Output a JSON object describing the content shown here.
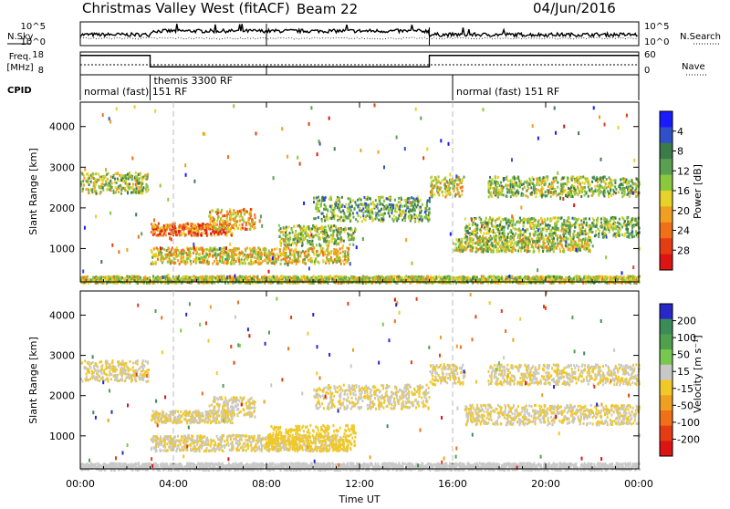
{
  "header": {
    "title": "Christmas Valley West (fitACF)",
    "beam": "Beam 22",
    "date": "04/Jun/2016"
  },
  "strips": {
    "nsky_label": "N.Sky",
    "nsky_ticks": [
      "10^5",
      "10^0"
    ],
    "nsearch_label": "N.Search",
    "freq_label": "Freq.",
    "freq_unit": "[MHz]",
    "freq_ticks": [
      "18",
      "8"
    ],
    "nave_label": "Nave",
    "nave_ticks": [
      "60",
      "0"
    ],
    "cpid_label": "CPID",
    "cpid_segments": [
      {
        "label": "normal (fast) 151 RF",
        "start_h": 0,
        "end_h": 3
      },
      {
        "label": "themis 3300 RF",
        "start_h": 3,
        "end_h": 15
      },
      {
        "label": "normal (fast) 151 RF",
        "start_h": 16,
        "end_h": 24
      }
    ]
  },
  "axes": {
    "ylabel": "Slant Range [km]",
    "xlabel": "Time UT",
    "x_ticks": [
      "00:00",
      "04:00",
      "08:00",
      "12:00",
      "16:00",
      "20:00",
      "00:00"
    ],
    "y_ticks": [
      "1000",
      "2000",
      "3000",
      "4000"
    ]
  },
  "colorbars": {
    "power": {
      "label": "Power [dB]",
      "ticks": [
        "4",
        "8",
        "12",
        "16",
        "20",
        "24",
        "28"
      ],
      "colors": [
        "#1a1aff",
        "#3050c8",
        "#3c7a4a",
        "#5aa050",
        "#8cc83c",
        "#e6d228",
        "#f0a020",
        "#f07018",
        "#e63c14",
        "#dc1414"
      ]
    },
    "velocity": {
      "label": "Velocity [m s⁻¹]",
      "ticks": [
        "200",
        "100",
        "50",
        "15",
        "-15",
        "-50",
        "-100",
        "-200"
      ],
      "colors": [
        "#2828c8",
        "#3c8c5a",
        "#50a050",
        "#78c850",
        "#c8c8c8",
        "#f0c828",
        "#f0a020",
        "#f07018",
        "#e63c14",
        "#dc1414"
      ]
    }
  },
  "chart_data": [
    {
      "type": "line",
      "title": "N.Sky",
      "x_range_h": [
        0,
        24
      ],
      "yscale": "log",
      "note_level": "approx 10^2 to 10^3 throughout"
    },
    {
      "type": "line",
      "title": "Freq.",
      "x_range_h": [
        0,
        24
      ],
      "ylim": [
        8,
        18
      ],
      "series": [
        {
          "name": "Freq.",
          "x": [
            0,
            3,
            3,
            15,
            15,
            24
          ],
          "y": [
            16.5,
            16.5,
            11.5,
            11.5,
            16.5,
            16.5
          ]
        }
      ]
    },
    {
      "type": "heatmap",
      "title": "Power",
      "x_range_h": [
        0,
        24
      ],
      "ylim": [
        180,
        4600
      ],
      "bands": [
        {
          "t": [
            0.0,
            2.9
          ],
          "r": [
            2380,
            2900
          ],
          "mid": 15
        },
        {
          "t": [
            3.0,
            6.5
          ],
          "r": [
            1350,
            1650
          ],
          "mid": 24
        },
        {
          "t": [
            5.5,
            7.5
          ],
          "r": [
            1500,
            2000
          ],
          "mid": 20
        },
        {
          "t": [
            3.0,
            11.5
          ],
          "r": [
            650,
            1050
          ],
          "mid": 18
        },
        {
          "t": [
            8.5,
            11.8
          ],
          "r": [
            1100,
            1600
          ],
          "mid": 14
        },
        {
          "t": [
            10.0,
            15.0
          ],
          "r": [
            1700,
            2300
          ],
          "mid": 12
        },
        {
          "t": [
            15.0,
            16.5
          ],
          "r": [
            2300,
            2800
          ],
          "mid": 17
        },
        {
          "t": [
            16.5,
            24.0
          ],
          "r": [
            1300,
            1800
          ],
          "mid": 13
        },
        {
          "t": [
            17.5,
            24.0
          ],
          "r": [
            2300,
            2800
          ],
          "mid": 14
        },
        {
          "t": [
            16.0,
            22.0
          ],
          "r": [
            950,
            1300
          ],
          "mid": 16
        },
        {
          "t": [
            0.0,
            24.0
          ],
          "r": [
            180,
            350
          ],
          "mid": 16
        }
      ]
    },
    {
      "type": "heatmap",
      "title": "Velocity",
      "x_range_h": [
        0,
        24
      ],
      "ylim": [
        180,
        4600
      ],
      "bands": [
        {
          "t": [
            0.0,
            2.9
          ],
          "r": [
            2380,
            2900
          ],
          "mid": 0
        },
        {
          "t": [
            3.0,
            6.5
          ],
          "r": [
            1350,
            1650
          ],
          "mid": 0
        },
        {
          "t": [
            5.5,
            7.5
          ],
          "r": [
            1500,
            2000
          ],
          "mid": 0
        },
        {
          "t": [
            3.0,
            11.5
          ],
          "r": [
            650,
            1050
          ],
          "mid": 0
        },
        {
          "t": [
            8.0,
            11.8
          ],
          "r": [
            650,
            1300
          ],
          "mid": -40
        },
        {
          "t": [
            10.0,
            15.0
          ],
          "r": [
            1700,
            2300
          ],
          "mid": 0
        },
        {
          "t": [
            15.0,
            16.5
          ],
          "r": [
            2300,
            2800
          ],
          "mid": 0
        },
        {
          "t": [
            16.5,
            24.0
          ],
          "r": [
            1300,
            1800
          ],
          "mid": 0
        },
        {
          "t": [
            17.5,
            24.0
          ],
          "r": [
            2300,
            2800
          ],
          "mid": 0
        },
        {
          "t": [
            0.0,
            24.0
          ],
          "r": [
            180,
            350
          ],
          "mid": 25
        }
      ]
    }
  ]
}
